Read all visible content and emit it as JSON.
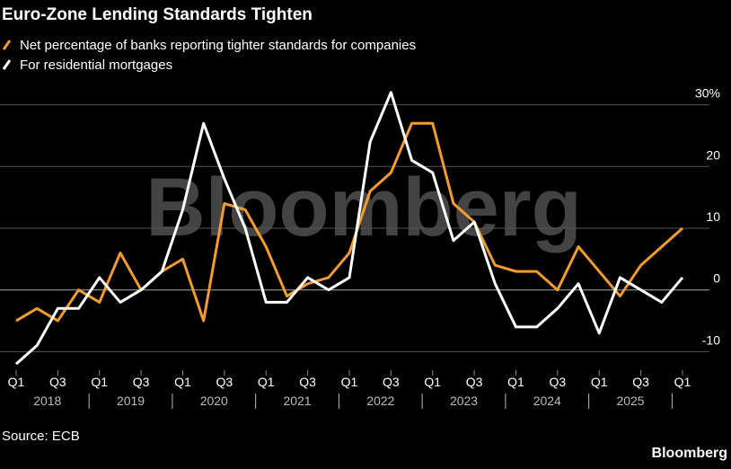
{
  "chart_data": {
    "type": "line",
    "title": "Euro-Zone Lending Standards Tighten",
    "watermark": "Bloomberg",
    "source": "Source: ECB",
    "brand": "Bloomberg",
    "categories": [
      "Q1",
      null,
      "Q3",
      null,
      "Q1",
      null,
      "Q3",
      null,
      "Q1",
      null,
      "Q3",
      null,
      "Q1",
      null,
      "Q3",
      null,
      "Q1",
      null,
      "Q3",
      null,
      "Q1",
      null,
      "Q3",
      null,
      "Q1",
      null,
      "Q3",
      null,
      "Q1",
      null,
      "Q3",
      null,
      "Q1"
    ],
    "year_labels": [
      "2018",
      "2019",
      "2020",
      "2021",
      "2022",
      "2023",
      "2024",
      "2025"
    ],
    "series": [
      {
        "name": "Net percentage of banks reporting tighter standards for companies",
        "color": "#f39c2e",
        "values": [
          -5,
          -3,
          -5,
          0,
          -2,
          6,
          0,
          3,
          5,
          -5,
          14,
          13,
          7,
          -1,
          1,
          2,
          6,
          16,
          19,
          27,
          27,
          14,
          11,
          4,
          3,
          3,
          0,
          7,
          3,
          -1,
          4,
          7,
          10
        ]
      },
      {
        "name": "For residential mortgages",
        "color": "#ffffff",
        "values": [
          -12,
          -9,
          -3,
          -3,
          2,
          -2,
          0,
          3,
          13,
          27,
          18,
          10,
          -2,
          -2,
          2,
          0,
          2,
          24,
          32,
          21,
          19,
          8,
          11,
          1,
          -6,
          -6,
          -3,
          1,
          -7,
          2,
          0,
          -2,
          2
        ]
      }
    ],
    "ylim": [
      -13,
      33
    ],
    "yticks": [
      {
        "value": 30,
        "label": "30%"
      },
      20,
      10,
      0,
      -10
    ],
    "grid": true
  }
}
